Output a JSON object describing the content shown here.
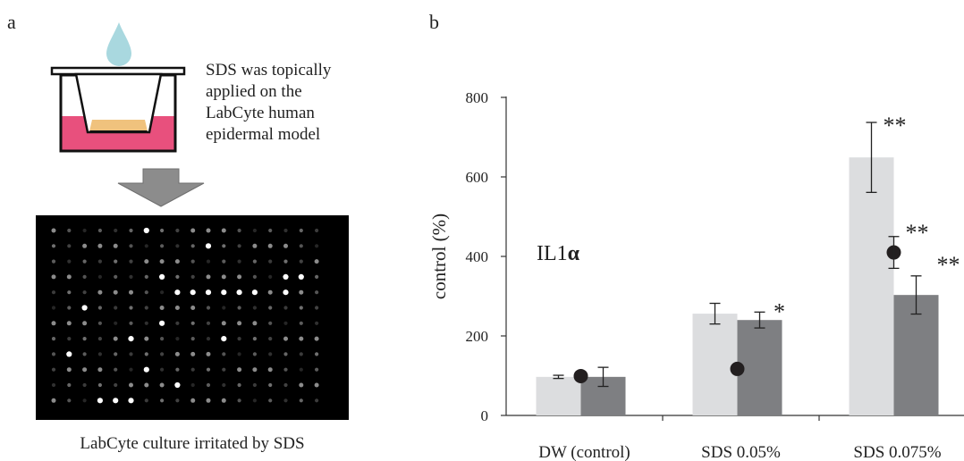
{
  "panel_a": {
    "label": "a",
    "description_lines": [
      "SDS was topically",
      "applied on the",
      "LabCyte human",
      "epidermal model"
    ],
    "caption": "LabCyte culture irritated by SDS",
    "colors": {
      "droplet": "#a9d8df",
      "tissue": "#f0c27d",
      "medium": "#e8507d",
      "arrow": "#8c8c8c",
      "array_bg": "#000000"
    }
  },
  "panel_b": {
    "label": "b"
  },
  "chart_data": {
    "type": "bar",
    "title": "",
    "ylabel": "control (%)",
    "xlabel": "",
    "ylim": [
      0,
      800
    ],
    "yticks": [
      0,
      200,
      400,
      600,
      800
    ],
    "categories": [
      "DW (control)",
      "SDS 0.05%",
      "SDS 0.075%"
    ],
    "annotation": {
      "text": "IL1",
      "symbol": "α"
    },
    "series": [
      {
        "values": [
          97,
          256,
          649
        ],
        "errors": [
          4,
          26,
          88
        ],
        "marks": [
          "",
          "",
          "**"
        ],
        "kind": "bar",
        "color": "#dcdddf"
      },
      {
        "values": [
          99,
          117,
          410
        ],
        "errors": [
          0,
          0,
          40
        ],
        "marks": [
          "",
          "",
          "**"
        ],
        "kind": "dot",
        "color": "#231f20"
      },
      {
        "values": [
          97,
          240,
          303
        ],
        "errors": [
          24,
          20,
          48
        ],
        "marks": [
          "",
          "*",
          "**"
        ],
        "kind": "bar",
        "color": "#7e7f82"
      }
    ]
  }
}
